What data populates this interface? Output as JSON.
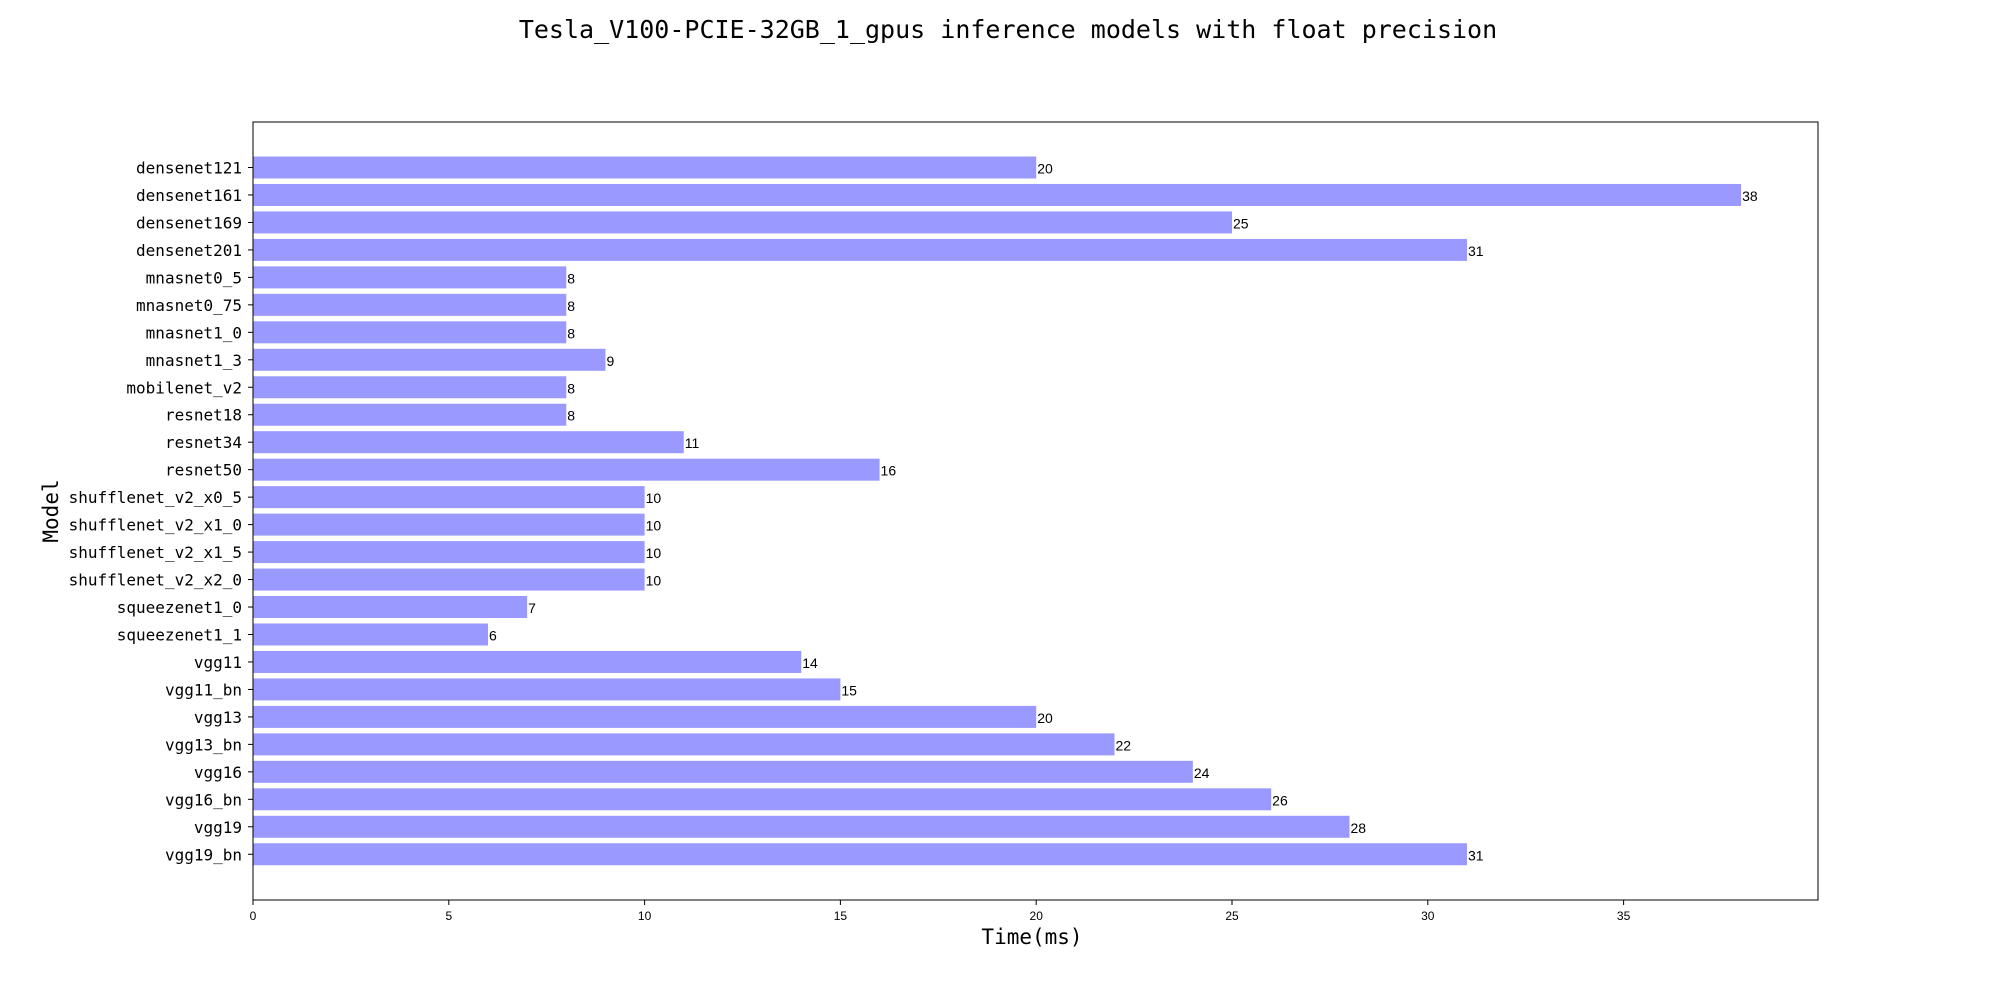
{
  "chart_data": {
    "type": "bar",
    "orientation": "horizontal",
    "title": "Tesla_V100-PCIE-32GB_1_gpus inference models with float precision",
    "xlabel": "Time(ms)",
    "ylabel": "Model",
    "xlim": [
      0,
      40
    ],
    "xticks": [
      "0",
      "5",
      "10",
      "15",
      "20",
      "25",
      "30",
      "35"
    ],
    "grid": false,
    "bar_color": "#9999ff",
    "categories": [
      "densenet121",
      "densenet161",
      "densenet169",
      "densenet201",
      "mnasnet0_5",
      "mnasnet0_75",
      "mnasnet1_0",
      "mnasnet1_3",
      "mobilenet_v2",
      "resnet18",
      "resnet34",
      "resnet50",
      "shufflenet_v2_x0_5",
      "shufflenet_v2_x1_0",
      "shufflenet_v2_x1_5",
      "shufflenet_v2_x2_0",
      "squeezenet1_0",
      "squeezenet1_1",
      "vgg11",
      "vgg11_bn",
      "vgg13",
      "vgg13_bn",
      "vgg16",
      "vgg16_bn",
      "vgg19",
      "vgg19_bn"
    ],
    "values": [
      20,
      38,
      25,
      31,
      8,
      8,
      8,
      9,
      8,
      8,
      11,
      16,
      10,
      10,
      10,
      10,
      7,
      6,
      14,
      15,
      20,
      22,
      24,
      26,
      28,
      31
    ]
  }
}
